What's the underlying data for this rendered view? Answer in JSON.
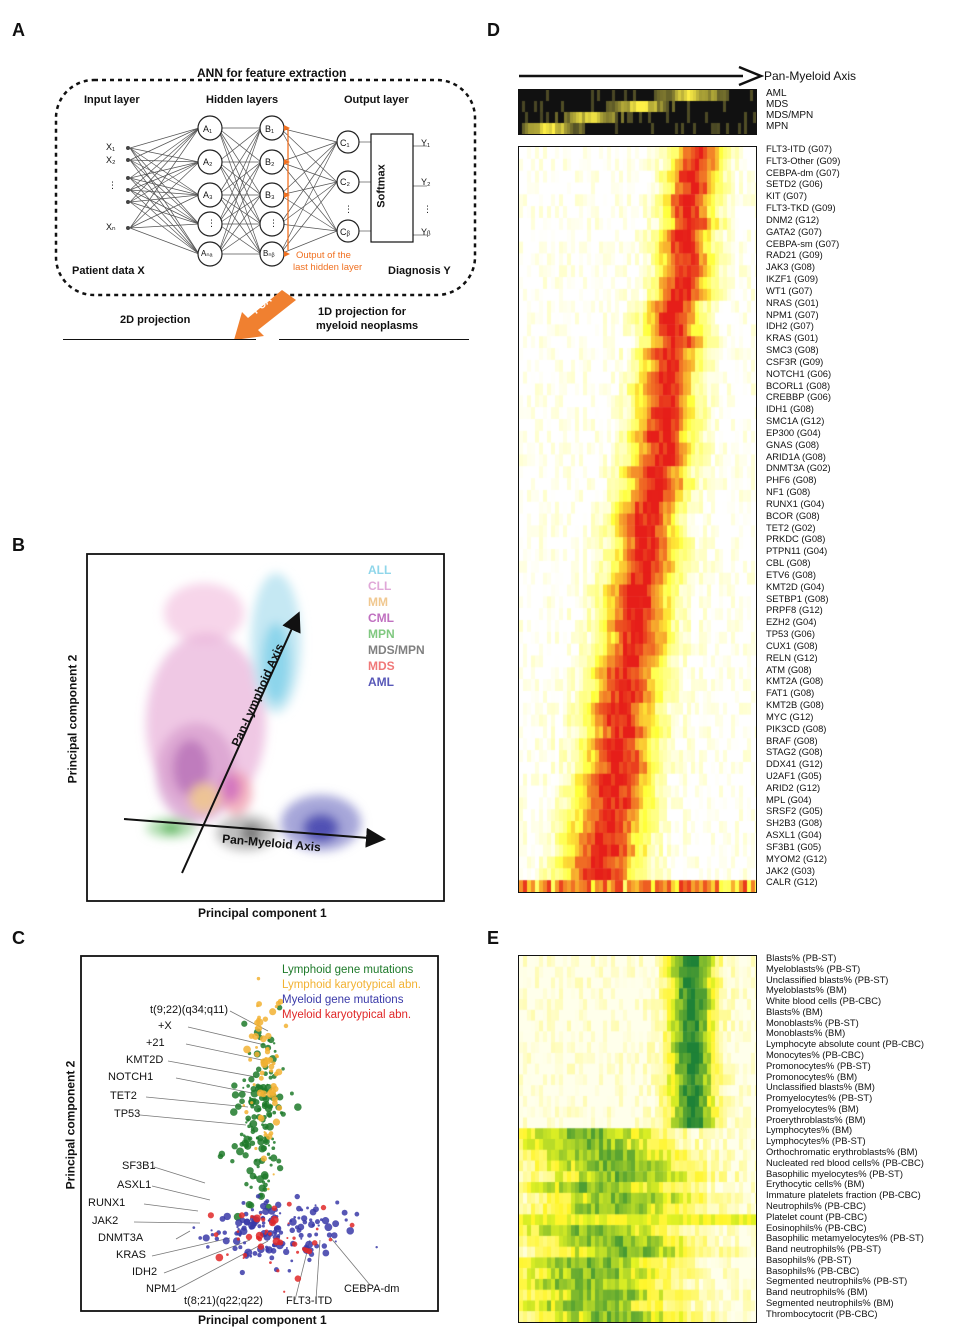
{
  "panels": {
    "a": "A",
    "b": "B",
    "c": "C",
    "d": "D",
    "e": "E"
  },
  "panel_a": {
    "title": "ANN for feature extraction",
    "input_layer": "Input layer",
    "hidden_layers": "Hidden layers",
    "output_layer": "Output layer",
    "patient_data": "Patient data X",
    "diagnosis": "Diagnosis Y",
    "softmax": "Softmax",
    "output_note_1": "Output of the",
    "output_note_2": "last hidden layer",
    "pca": "PCA",
    "proj2d": "2D projection",
    "proj1d_1": "1D projection for",
    "proj1d_2": "myeloid neoplasms",
    "nodes": {
      "x1": "X₁",
      "x2": "X₂",
      "xdots": "⋮",
      "xn": "Xₙ",
      "a1": "A₁",
      "a2": "A₂",
      "a3": "A₃",
      "adots": "⋮",
      "an": "Aₙₐ",
      "b1": "B₁",
      "b2": "B₂",
      "b3": "B₃",
      "bdots": "⋮",
      "bn": "Bₙᵦ",
      "c1": "C₁",
      "c2": "C₂",
      "cdots": "⋮",
      "cn": "Cᵦ",
      "y1": "Y₁",
      "y2": "Y₂",
      "ydots": "⋮",
      "yn": "Yᵦ"
    }
  },
  "panel_b": {
    "xlabel": "Principal component 1",
    "ylabel": "Principal component 2",
    "lymphoid_axis": "Pan-Lymphoid Axis",
    "myeloid_axis": "Pan-Myeloid Axis",
    "legend": [
      {
        "label": "ALL",
        "color": "#7fd0e8"
      },
      {
        "label": "CLL",
        "color": "#e0a8d8"
      },
      {
        "label": "MM",
        "color": "#f0c890"
      },
      {
        "label": "CML",
        "color": "#c070c0"
      },
      {
        "label": "MPN",
        "color": "#80c880"
      },
      {
        "label": "MDS/MPN",
        "color": "#808080"
      },
      {
        "label": "MDS",
        "color": "#f07878"
      },
      {
        "label": "AML",
        "color": "#5858b8"
      }
    ]
  },
  "panel_c": {
    "xlabel": "Principal component 1",
    "ylabel": "Principal component 2",
    "legend": [
      {
        "label": "Lymphoid gene mutations",
        "color": "#1e7a2a"
      },
      {
        "label": "Lymphoid karyotypical abn.",
        "color": "#f2b233"
      },
      {
        "label": "Myeloid gene mutations",
        "color": "#3a3aa8"
      },
      {
        "label": "Myeloid karyotypical abn.",
        "color": "#e02828"
      }
    ],
    "mutations_left": [
      "t(9;22)(q34;q11)",
      "+X",
      "+21",
      "KMT2D",
      "NOTCH1",
      "TET2",
      "TP53",
      "SF3B1",
      "ASXL1",
      "RUNX1",
      "JAK2",
      "DNMT3A",
      "KRAS",
      "IDH2",
      "NPM1"
    ],
    "mutations_bottom": [
      "t(8;21)(q22;q22)",
      "FLT3-ITD",
      "CEBPA-dm"
    ]
  },
  "panel_d": {
    "axis_title": "Pan-Myeloid Axis",
    "groups": [
      "AML",
      "MDS",
      "MDS/MPN",
      "MPN"
    ],
    "genes": [
      "FLT3-ITD (G07)",
      "FLT3-Other (G09)",
      "CEBPA-dm (G07)",
      "SETD2 (G06)",
      "KIT (G07)",
      "FLT3-TKD (G09)",
      "DNM2 (G12)",
      "GATA2 (G07)",
      "CEBPA-sm (G07)",
      "RAD21 (G09)",
      "JAK3 (G08)",
      "IKZF1 (G09)",
      "WT1 (G07)",
      "NRAS (G01)",
      "NPM1 (G07)",
      "IDH2 (G07)",
      "KRAS (G01)",
      "SMC3 (G08)",
      "CSF3R (G09)",
      "NOTCH1 (G06)",
      "BCORL1 (G08)",
      "CREBBP (G06)",
      "IDH1 (G08)",
      "SMC1A (G12)",
      "EP300 (G04)",
      "GNAS (G08)",
      "ARID1A (G08)",
      "DNMT3A (G02)",
      "PHF6 (G08)",
      "NF1 (G08)",
      "RUNX1 (G04)",
      "BCOR (G08)",
      "TET2 (G02)",
      "PRKDC (G08)",
      "PTPN11 (G04)",
      "CBL (G08)",
      "ETV6 (G08)",
      "KMT2D (G04)",
      "SETBP1 (G08)",
      "PRPF8 (G12)",
      "EZH2 (G04)",
      "TP53 (G06)",
      "CUX1 (G08)",
      "RELN (G12)",
      "ATM (G08)",
      "KMT2A (G08)",
      "FAT1 (G08)",
      "KMT2B (G08)",
      "MYC (G12)",
      "PIK3CD (G08)",
      "BRAF (G08)",
      "STAG2 (G08)",
      "DDX41 (G12)",
      "U2AF1 (G05)",
      "ARID2 (G12)",
      "MPL (G04)",
      "SRSF2 (G05)",
      "SH2B3 (G08)",
      "ASXL1 (G04)",
      "SF3B1 (G05)",
      "MYOM2 (G12)",
      "JAK2 (G03)",
      "CALR (G12)"
    ]
  },
  "panel_e": {
    "features": [
      "Blasts% (PB-ST)",
      "Myeloblasts% (PB-ST)",
      "Unclassified blasts% (PB-ST)",
      "Myeloblasts% (BM)",
      "White blood cells (PB-CBC)",
      "Blasts% (BM)",
      "Monoblasts% (PB-ST)",
      "Monoblasts% (BM)",
      "Lymphocyte absolute count (PB-CBC)",
      "Monocytes% (PB-CBC)",
      "Promonocytes% (PB-ST)",
      "Promonocytes% (BM)",
      "Unclassified blasts% (BM)",
      "Promyelocytes% (PB-ST)",
      "Promyelocytes% (BM)",
      "Proerythroblasts% (BM)",
      "Lymphocytes% (BM)",
      "Lymphocytes% (PB-ST)",
      "Orthochromatic erythroblasts% (BM)",
      "Nucleated red blood cells% (PB-CBC)",
      "Basophilic myelocytes% (PB-ST)",
      "Erythocytic cells% (BM)",
      "Immature platelets fraction (PB-CBC)",
      "Neutrophils% (PB-CBC)",
      "Platelet count (PB-CBC)",
      "Eosinophils% (PB-CBC)",
      "Basophilic metamyelocytes% (PB-ST)",
      "Band neutrophils% (PB-ST)",
      "Basophils% (PB-ST)",
      "Basophils% (PB-CBC)",
      "Segmented neutrophils% (PB-ST)",
      "Band neutrophils% (BM)",
      "Segmented neutrophils% (BM)",
      "Thrombocytocrit (PB-CBC)"
    ]
  }
}
